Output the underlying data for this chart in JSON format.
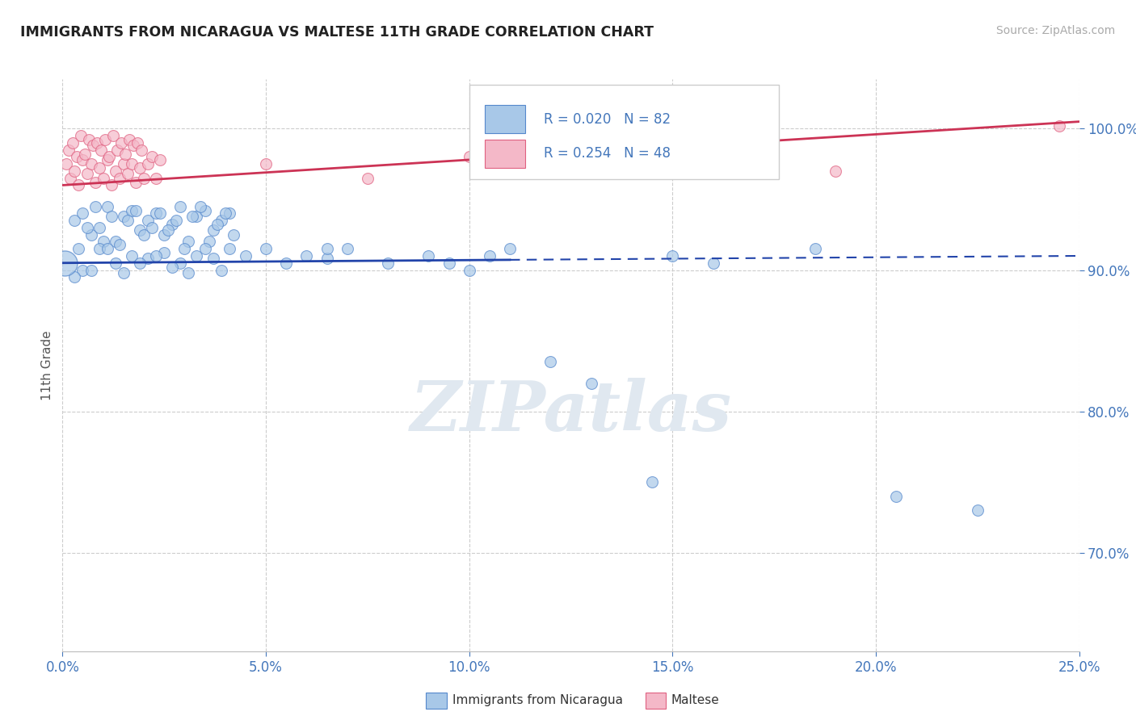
{
  "title": "IMMIGRANTS FROM NICARAGUA VS MALTESE 11TH GRADE CORRELATION CHART",
  "source": "Source: ZipAtlas.com",
  "ylabel": "11th Grade",
  "xmin": 0.0,
  "xmax": 25.0,
  "ymin": 63.0,
  "ymax": 103.5,
  "yticks": [
    70.0,
    80.0,
    90.0,
    100.0
  ],
  "xticks": [
    0.0,
    5.0,
    10.0,
    15.0,
    20.0,
    25.0
  ],
  "legend_r_blue": "0.020",
  "legend_n_blue": "82",
  "legend_r_pink": "0.254",
  "legend_n_pink": "48",
  "blue_color": "#A8C8E8",
  "blue_edge_color": "#5588CC",
  "pink_color": "#F4B8C8",
  "pink_edge_color": "#E06080",
  "blue_line_color": "#2244AA",
  "pink_line_color": "#CC3355",
  "watermark_text": "ZIPatlas",
  "background_color": "#FFFFFF",
  "grid_color": "#CCCCCC",
  "tick_color": "#4477BB",
  "label_color": "#555555",
  "blue_scatter_x": [
    0.3,
    0.5,
    0.7,
    0.9,
    1.1,
    1.3,
    1.5,
    1.7,
    1.9,
    2.1,
    2.3,
    2.5,
    2.7,
    2.9,
    3.1,
    3.3,
    3.5,
    3.7,
    3.9,
    4.1,
    0.4,
    0.6,
    0.8,
    1.0,
    1.2,
    1.4,
    1.6,
    1.8,
    2.0,
    2.2,
    2.4,
    2.6,
    2.8,
    3.0,
    3.2,
    3.4,
    3.6,
    3.8,
    4.0,
    4.2,
    0.5,
    0.9,
    1.3,
    1.7,
    2.1,
    2.5,
    2.9,
    3.3,
    3.7,
    4.1,
    0.3,
    0.7,
    1.1,
    1.5,
    1.9,
    2.3,
    2.7,
    3.1,
    3.5,
    3.9,
    4.5,
    5.0,
    5.5,
    6.0,
    6.5,
    7.0,
    8.0,
    9.0,
    10.0,
    11.0,
    12.0,
    13.0,
    14.5,
    17.0,
    18.5,
    20.5,
    22.5,
    15.0,
    16.0,
    6.5,
    9.5,
    10.5
  ],
  "blue_scatter_y": [
    93.5,
    94.0,
    92.5,
    93.0,
    94.5,
    92.0,
    93.8,
    94.2,
    92.8,
    93.5,
    94.0,
    92.5,
    93.2,
    94.5,
    92.0,
    93.8,
    94.2,
    92.8,
    93.5,
    94.0,
    91.5,
    93.0,
    94.5,
    92.0,
    93.8,
    91.8,
    93.5,
    94.2,
    92.5,
    93.0,
    94.0,
    92.8,
    93.5,
    91.5,
    93.8,
    94.5,
    92.0,
    93.2,
    94.0,
    92.5,
    90.0,
    91.5,
    90.5,
    91.0,
    90.8,
    91.2,
    90.5,
    91.0,
    90.8,
    91.5,
    89.5,
    90.0,
    91.5,
    89.8,
    90.5,
    91.0,
    90.2,
    89.8,
    91.5,
    90.0,
    91.0,
    91.5,
    90.5,
    91.0,
    90.8,
    91.5,
    90.5,
    91.0,
    90.0,
    91.5,
    83.5,
    82.0,
    75.0,
    98.0,
    91.5,
    74.0,
    73.0,
    91.0,
    90.5,
    91.5,
    90.5,
    91.0
  ],
  "big_blue_x": 0.05,
  "big_blue_y": 90.5,
  "pink_scatter_x": [
    0.1,
    0.15,
    0.2,
    0.25,
    0.3,
    0.35,
    0.4,
    0.45,
    0.5,
    0.55,
    0.6,
    0.65,
    0.7,
    0.75,
    0.8,
    0.85,
    0.9,
    0.95,
    1.0,
    1.05,
    1.1,
    1.15,
    1.2,
    1.25,
    1.3,
    1.35,
    1.4,
    1.45,
    1.5,
    1.55,
    1.6,
    1.65,
    1.7,
    1.75,
    1.8,
    1.85,
    1.9,
    1.95,
    2.0,
    2.1,
    2.2,
    2.3,
    2.4,
    5.0,
    7.5,
    10.0,
    19.0,
    24.5
  ],
  "pink_scatter_y": [
    97.5,
    98.5,
    96.5,
    99.0,
    97.0,
    98.0,
    96.0,
    99.5,
    97.8,
    98.2,
    96.8,
    99.2,
    97.5,
    98.8,
    96.2,
    99.0,
    97.2,
    98.5,
    96.5,
    99.2,
    97.8,
    98.0,
    96.0,
    99.5,
    97.0,
    98.5,
    96.5,
    99.0,
    97.5,
    98.2,
    96.8,
    99.2,
    97.5,
    98.8,
    96.2,
    99.0,
    97.2,
    98.5,
    96.5,
    97.5,
    98.0,
    96.5,
    97.8,
    97.5,
    96.5,
    98.0,
    97.0,
    100.2
  ],
  "blue_trend_x": [
    0.0,
    25.0
  ],
  "blue_trend_y": [
    90.5,
    91.0
  ],
  "blue_trend_solid_end": 11.0,
  "pink_trend_x": [
    0.0,
    25.0
  ],
  "pink_trend_y": [
    96.0,
    100.5
  ]
}
